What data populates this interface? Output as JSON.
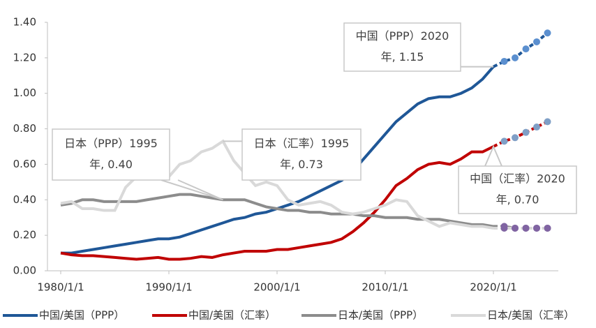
{
  "chart_data": {
    "type": "line",
    "x": [
      "1980/1/1",
      "1981/1/1",
      "1982/1/1",
      "1983/1/1",
      "1984/1/1",
      "1985/1/1",
      "1986/1/1",
      "1987/1/1",
      "1988/1/1",
      "1989/1/1",
      "1990/1/1",
      "1991/1/1",
      "1992/1/1",
      "1993/1/1",
      "1994/1/1",
      "1995/1/1",
      "1996/1/1",
      "1997/1/1",
      "1998/1/1",
      "1999/1/1",
      "2000/1/1",
      "2001/1/1",
      "2002/1/1",
      "2003/1/1",
      "2004/1/1",
      "2005/1/1",
      "2006/1/1",
      "2007/1/1",
      "2008/1/1",
      "2009/1/1",
      "2010/1/1",
      "2011/1/1",
      "2012/1/1",
      "2013/1/1",
      "2014/1/1",
      "2015/1/1",
      "2016/1/1",
      "2017/1/1",
      "2018/1/1",
      "2019/1/1",
      "2020/1/1",
      "2021/1/1",
      "2022/1/1",
      "2023/1/1",
      "2024/1/1",
      "2025/1/1"
    ],
    "xticks": [
      "1980/1/1",
      "1990/1/1",
      "2000/1/1",
      "2010/1/1",
      "2020/1/1"
    ],
    "ylim": [
      0,
      1.4
    ],
    "yticks": [
      {
        "value": 0,
        "label": "0.00"
      },
      {
        "value": 0.2,
        "label": "0.20"
      },
      {
        "value": 0.4,
        "label": "0.40"
      },
      {
        "value": 0.6,
        "label": "0.60"
      },
      {
        "value": 0.8,
        "label": "0.80"
      },
      {
        "value": 1.0,
        "label": "1.00"
      },
      {
        "value": 1.2,
        "label": "1.20"
      },
      {
        "value": 1.4,
        "label": "1.40"
      }
    ],
    "forecast_start": "2021/1/1",
    "series": [
      {
        "name": "中国/美国（PPP）",
        "color": "#1f5797",
        "marker_color": "#5b8fcf",
        "values": [
          0.1,
          0.1,
          0.11,
          0.12,
          0.13,
          0.14,
          0.15,
          0.16,
          0.17,
          0.18,
          0.18,
          0.19,
          0.21,
          0.23,
          0.25,
          0.27,
          0.29,
          0.3,
          0.32,
          0.33,
          0.35,
          0.37,
          0.39,
          0.42,
          0.45,
          0.48,
          0.51,
          0.56,
          0.63,
          0.7,
          0.77,
          0.84,
          0.89,
          0.94,
          0.97,
          0.98,
          0.98,
          1.0,
          1.03,
          1.08,
          1.15,
          1.18,
          1.2,
          1.25,
          1.29,
          1.34
        ]
      },
      {
        "name": "中国/美国（汇率）",
        "color": "#c00000",
        "marker_color": "#7f9fc6",
        "values": [
          0.1,
          0.09,
          0.085,
          0.085,
          0.08,
          0.075,
          0.07,
          0.065,
          0.07,
          0.075,
          0.065,
          0.065,
          0.07,
          0.08,
          0.075,
          0.09,
          0.1,
          0.11,
          0.11,
          0.11,
          0.12,
          0.12,
          0.13,
          0.14,
          0.15,
          0.16,
          0.18,
          0.22,
          0.27,
          0.33,
          0.4,
          0.48,
          0.52,
          0.57,
          0.6,
          0.61,
          0.6,
          0.63,
          0.67,
          0.67,
          0.7,
          0.73,
          0.75,
          0.78,
          0.81,
          0.84
        ]
      },
      {
        "name": "日本/美国（PPP）",
        "color": "#8c8c8c",
        "marker_color": "#8064a2",
        "values": [
          0.37,
          0.38,
          0.4,
          0.4,
          0.39,
          0.39,
          0.39,
          0.39,
          0.4,
          0.41,
          0.42,
          0.43,
          0.43,
          0.42,
          0.41,
          0.4,
          0.4,
          0.4,
          0.38,
          0.36,
          0.35,
          0.34,
          0.34,
          0.33,
          0.33,
          0.32,
          0.32,
          0.32,
          0.31,
          0.31,
          0.3,
          0.3,
          0.3,
          0.29,
          0.29,
          0.29,
          0.28,
          0.27,
          0.26,
          0.26,
          0.25,
          0.25,
          0.24,
          0.24,
          0.24,
          0.24
        ]
      },
      {
        "name": "日本/美国（汇率）",
        "color": "#d9d9d9",
        "marker_color": "#8064a2",
        "values": [
          0.38,
          0.39,
          0.35,
          0.35,
          0.34,
          0.34,
          0.47,
          0.53,
          0.58,
          0.56,
          0.53,
          0.6,
          0.62,
          0.67,
          0.69,
          0.73,
          0.62,
          0.55,
          0.48,
          0.5,
          0.48,
          0.4,
          0.37,
          0.38,
          0.39,
          0.37,
          0.33,
          0.32,
          0.33,
          0.35,
          0.37,
          0.4,
          0.39,
          0.31,
          0.28,
          0.25,
          0.27,
          0.26,
          0.25,
          0.25,
          0.24,
          0.24,
          0.24,
          0.24,
          0.24,
          0.24
        ]
      }
    ],
    "annotations": [
      {
        "lines": [
          "中国（PPP）2020",
          "年, 1.15"
        ],
        "series": 0,
        "x": "2020/1/1"
      },
      {
        "lines": [
          "日本（PPP）1995",
          "年, 0.40"
        ],
        "series": 2,
        "x": "1995/1/1"
      },
      {
        "lines": [
          "日本（汇率）1995",
          "年, 0.73"
        ],
        "series": 3,
        "x": "1995/1/1"
      },
      {
        "lines": [
          "中国（汇率）2020",
          "年, 0.70"
        ],
        "series": 1,
        "x": "2020/1/1"
      }
    ]
  }
}
